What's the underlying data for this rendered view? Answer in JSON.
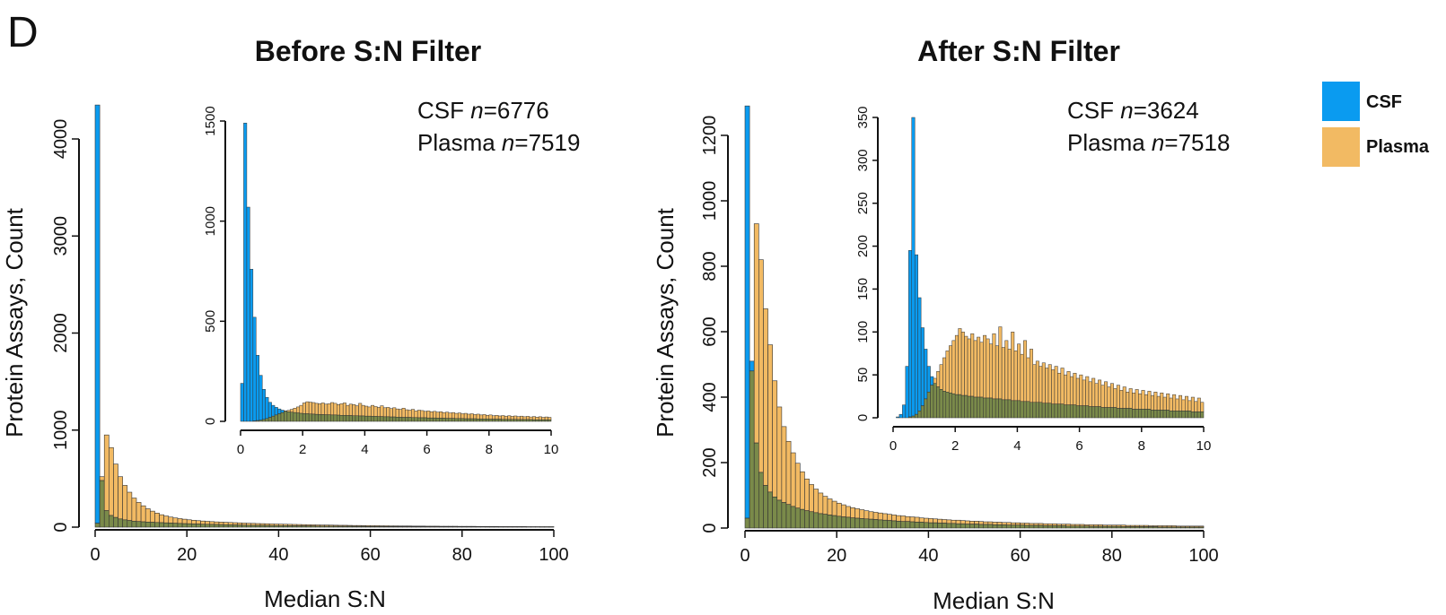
{
  "panel_label": "D",
  "colors": {
    "csf": "#0A9BF0",
    "plasma": "#F2BA63",
    "overlap": "#7A8A4A",
    "stroke": "#333333"
  },
  "legend": [
    {
      "label": "CSF",
      "color": "#0A9BF0"
    },
    {
      "label": "Plasma",
      "color": "#F2BA63"
    }
  ],
  "chart_data": [
    {
      "type": "bar",
      "title": "Before S:N Filter",
      "xlabel": "Median S:N",
      "ylabel": "Protein Assays, Count",
      "xlim": [
        0,
        100
      ],
      "ylim": [
        0,
        4000
      ],
      "xticks": [
        0,
        20,
        40,
        60,
        80,
        100
      ],
      "yticks": [
        0,
        1000,
        2000,
        3000,
        4000
      ],
      "bin_width": 1,
      "annotation": [
        {
          "prefix": "CSF ",
          "italic": "n",
          "suffix": "=6776"
        },
        {
          "prefix": "Plasma ",
          "italic": "n",
          "suffix": "=7519"
        }
      ],
      "series": [
        {
          "name": "CSF",
          "values": [
            4350,
            480,
            170,
            120,
            100,
            85,
            75,
            68,
            62,
            58,
            55,
            52,
            50,
            48,
            46,
            44,
            42,
            40,
            38,
            36,
            35,
            33,
            32,
            30,
            29,
            28,
            27,
            26,
            25,
            24,
            23,
            22,
            21,
            20,
            19,
            18,
            18,
            17,
            16,
            16,
            15,
            15,
            14,
            14,
            13,
            13,
            12,
            12,
            11,
            11,
            10,
            10,
            10,
            9,
            9,
            9,
            8,
            8,
            8,
            7,
            7,
            7,
            7,
            6,
            6,
            6,
            6,
            5,
            5,
            5,
            5,
            5,
            4,
            4,
            4,
            4,
            4,
            4,
            3,
            3,
            3,
            3,
            3,
            3,
            3,
            2,
            2,
            2,
            2,
            2,
            2,
            2,
            2,
            2,
            2,
            2,
            2,
            1,
            1,
            1
          ]
        },
        {
          "name": "Plasma",
          "values": [
            40,
            520,
            950,
            820,
            650,
            520,
            430,
            360,
            300,
            255,
            220,
            190,
            165,
            145,
            128,
            115,
            104,
            95,
            88,
            82,
            76,
            71,
            67,
            63,
            60,
            57,
            54,
            52,
            50,
            48,
            46,
            44,
            42,
            40,
            39,
            37,
            36,
            35,
            33,
            32,
            31,
            30,
            29,
            28,
            27,
            26,
            25,
            24,
            23,
            22,
            22,
            21,
            20,
            19,
            19,
            18,
            17,
            17,
            16,
            16,
            15,
            15,
            14,
            14,
            13,
            13,
            12,
            12,
            12,
            11,
            11,
            11,
            10,
            10,
            10,
            9,
            9,
            9,
            9,
            8,
            8,
            8,
            8,
            7,
            7,
            7,
            7,
            7,
            6,
            6,
            6,
            6,
            6,
            6,
            5,
            5,
            5,
            5,
            5,
            5
          ]
        }
      ],
      "inset": {
        "xlim": [
          0,
          10
        ],
        "ylim": [
          0,
          1500
        ],
        "xticks": [
          0,
          2,
          4,
          6,
          8,
          10
        ],
        "yticks": [
          0,
          500,
          1000,
          1500
        ],
        "bin_width": 0.1,
        "series": [
          {
            "name": "CSF",
            "values": [
              190,
              1490,
              1070,
              760,
              520,
              330,
              230,
              160,
              120,
              95,
              80,
              70,
              62,
              56,
              52,
              48,
              46,
              44,
              42,
              40,
              39,
              38,
              37,
              36,
              35,
              34,
              34,
              33,
              33,
              32,
              32,
              31,
              30,
              30,
              29,
              29,
              28,
              28,
              27,
              27,
              26,
              26,
              25,
              25,
              24,
              24,
              23,
              23,
              22,
              22,
              21,
              21,
              20,
              20,
              20,
              19,
              19,
              18,
              18,
              18,
              17,
              17,
              17,
              16,
              16,
              16,
              15,
              15,
              15,
              14,
              14,
              14,
              13,
              13,
              13,
              13,
              12,
              12,
              12,
              12,
              11,
              11,
              11,
              11,
              10,
              10,
              10,
              10,
              10,
              9,
              9,
              9,
              9,
              9,
              8,
              8,
              8,
              8,
              8,
              8
            ]
          },
          {
            "name": "Plasma",
            "values": [
              0,
              0,
              0,
              0,
              2,
              4,
              6,
              10,
              14,
              20,
              26,
              32,
              38,
              44,
              50,
              55,
              60,
              66,
              72,
              80,
              92,
              98,
              96,
              94,
              90,
              88,
              92,
              86,
              88,
              94,
              90,
              84,
              88,
              92,
              80,
              86,
              84,
              78,
              90,
              80,
              76,
              72,
              80,
              74,
              70,
              78,
              68,
              70,
              64,
              68,
              62,
              60,
              66,
              58,
              56,
              60,
              52,
              56,
              54,
              50,
              52,
              48,
              50,
              46,
              48,
              44,
              46,
              42,
              44,
              40,
              42,
              38,
              40,
              36,
              38,
              34,
              36,
              32,
              34,
              30,
              32,
              28,
              30,
              27,
              29,
              26,
              28,
              25,
              27,
              24,
              26,
              23,
              25,
              22,
              24,
              21,
              23,
              20,
              22,
              20
            ]
          }
        ]
      }
    },
    {
      "type": "bar",
      "title": "After S:N Filter",
      "xlabel": "Median S:N",
      "ylabel": "Protein Assays, Count",
      "xlim": [
        0,
        100
      ],
      "ylim": [
        0,
        1200
      ],
      "xticks": [
        0,
        20,
        40,
        60,
        80,
        100
      ],
      "yticks": [
        0,
        200,
        400,
        600,
        800,
        1000,
        1200
      ],
      "bin_width": 1,
      "annotation": [
        {
          "prefix": "CSF ",
          "italic": "n",
          "suffix": "=3624"
        },
        {
          "prefix": "Plasma ",
          "italic": "n",
          "suffix": "=7518"
        }
      ],
      "series": [
        {
          "name": "CSF",
          "values": [
            1290,
            510,
            260,
            170,
            130,
            110,
            95,
            85,
            78,
            72,
            66,
            61,
            57,
            53,
            50,
            47,
            44,
            42,
            40,
            38,
            36,
            34,
            33,
            31,
            30,
            29,
            28,
            27,
            26,
            25,
            24,
            23,
            22,
            21,
            20,
            20,
            19,
            18,
            18,
            17,
            16,
            16,
            15,
            15,
            14,
            14,
            13,
            13,
            12,
            12,
            12,
            11,
            11,
            11,
            10,
            10,
            10,
            9,
            9,
            9,
            9,
            8,
            8,
            8,
            8,
            7,
            7,
            7,
            7,
            7,
            6,
            6,
            6,
            6,
            6,
            5,
            5,
            5,
            5,
            5,
            5,
            5,
            4,
            4,
            4,
            4,
            4,
            4,
            4,
            4,
            3,
            3,
            3,
            3,
            3,
            3,
            3,
            3,
            3,
            3
          ]
        },
        {
          "name": "Plasma",
          "values": [
            30,
            480,
            930,
            820,
            670,
            560,
            450,
            370,
            310,
            265,
            230,
            198,
            172,
            150,
            133,
            119,
            107,
            97,
            89,
            82,
            76,
            71,
            66,
            62,
            59,
            56,
            53,
            50,
            48,
            46,
            44,
            42,
            40,
            38,
            37,
            35,
            34,
            33,
            31,
            30,
            29,
            28,
            27,
            26,
            25,
            24,
            24,
            23,
            22,
            21,
            21,
            20,
            19,
            19,
            18,
            18,
            17,
            17,
            16,
            16,
            15,
            15,
            14,
            14,
            14,
            13,
            13,
            13,
            12,
            12,
            12,
            11,
            11,
            11,
            10,
            10,
            10,
            10,
            9,
            9,
            9,
            9,
            9,
            8,
            8,
            8,
            8,
            8,
            7,
            7,
            7,
            7,
            7,
            7,
            6,
            6,
            6,
            6,
            6,
            6
          ]
        }
      ],
      "inset": {
        "xlim": [
          0,
          10
        ],
        "ylim": [
          0,
          350
        ],
        "xticks": [
          0,
          2,
          4,
          6,
          8,
          10
        ],
        "yticks": [
          0,
          50,
          100,
          150,
          200,
          250,
          300,
          350
        ],
        "bin_width": 0.1,
        "series": [
          {
            "name": "CSF",
            "values": [
              0,
              1,
              4,
              15,
              60,
              195,
              350,
              190,
              140,
              105,
              80,
              60,
              48,
              40,
              36,
              33,
              31,
              30,
              29,
              28,
              27,
              27,
              26,
              26,
              25,
              25,
              24,
              24,
              24,
              23,
              23,
              23,
              22,
              22,
              22,
              21,
              21,
              21,
              20,
              20,
              20,
              19,
              19,
              19,
              18,
              18,
              18,
              18,
              17,
              17,
              17,
              16,
              16,
              16,
              16,
              15,
              15,
              15,
              15,
              14,
              14,
              14,
              14,
              13,
              13,
              13,
              13,
              12,
              12,
              12,
              12,
              12,
              11,
              11,
              11,
              11,
              11,
              10,
              10,
              10,
              10,
              10,
              10,
              9,
              9,
              9,
              9,
              9,
              9,
              8,
              8,
              8,
              8,
              8,
              8,
              8,
              7,
              7,
              7,
              7
            ]
          },
          {
            "name": "Plasma",
            "values": [
              0,
              0,
              0,
              0,
              0,
              1,
              2,
              4,
              8,
              14,
              22,
              30,
              38,
              46,
              54,
              62,
              70,
              78,
              84,
              90,
              96,
              104,
              100,
              95,
              92,
              98,
              90,
              94,
              88,
              96,
              92,
              86,
              98,
              84,
              106,
              82,
              90,
              80,
              100,
              78,
              86,
              74,
              90,
              70,
              80,
              62,
              66,
              60,
              64,
              58,
              62,
              56,
              60,
              52,
              58,
              50,
              54,
              48,
              52,
              46,
              50,
              44,
              48,
              42,
              46,
              40,
              44,
              38,
              42,
              36,
              40,
              34,
              38,
              32,
              36,
              30,
              34,
              29,
              33,
              28,
              32,
              27,
              31,
              26,
              30,
              25,
              29,
              24,
              28,
              23,
              27,
              22,
              26,
              21,
              25,
              20,
              24,
              19,
              23,
              18
            ]
          }
        ]
      }
    }
  ]
}
